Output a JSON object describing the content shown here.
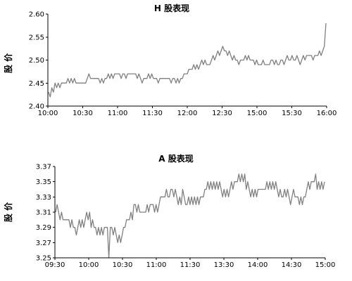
{
  "chart_data": [
    {
      "type": "line",
      "title": "H 股表现",
      "ylabel": "股 价",
      "xlabel": "",
      "ylim": [
        2.4,
        2.6
      ],
      "y_ticks": [
        "2.60",
        "2.55",
        "2.50",
        "2.45",
        "2.40"
      ],
      "x_ticks": [
        "10:00",
        "10:30",
        "11:00",
        "11:30",
        "12:00",
        "12:30",
        "15:00",
        "15:30",
        "16:00"
      ],
      "series": [
        {
          "values": [
            2.43,
            2.42,
            2.44,
            2.43,
            2.45,
            2.44,
            2.45,
            2.44,
            2.45,
            2.45,
            2.45,
            2.45,
            2.46,
            2.45,
            2.46,
            2.45,
            2.46,
            2.45,
            2.45,
            2.45,
            2.45,
            2.45,
            2.45,
            2.45,
            2.46,
            2.47,
            2.46,
            2.46,
            2.46,
            2.46,
            2.46,
            2.46,
            2.45,
            2.46,
            2.45,
            2.46,
            2.46,
            2.47,
            2.46,
            2.47,
            2.46,
            2.47,
            2.47,
            2.47,
            2.47,
            2.46,
            2.47,
            2.47,
            2.46,
            2.47,
            2.47,
            2.47,
            2.47,
            2.47,
            2.47,
            2.46,
            2.47,
            2.46,
            2.45,
            2.46,
            2.46,
            2.46,
            2.47,
            2.46,
            2.47,
            2.46,
            2.46,
            2.46,
            2.45,
            2.46,
            2.46,
            2.46,
            2.46,
            2.46,
            2.46,
            2.46,
            2.45,
            2.46,
            2.46,
            2.45,
            2.46,
            2.45,
            2.46,
            2.46,
            2.47,
            2.47,
            2.47,
            2.48,
            2.48,
            2.48,
            2.49,
            2.48,
            2.49,
            2.48,
            2.49,
            2.5,
            2.49,
            2.5,
            2.49,
            2.49,
            2.49,
            2.5,
            2.51,
            2.5,
            2.51,
            2.52,
            2.51,
            2.52,
            2.53,
            2.52,
            2.52,
            2.51,
            2.52,
            2.51,
            2.5,
            2.51,
            2.5,
            2.5,
            2.49,
            2.5,
            2.5,
            2.5,
            2.51,
            2.5,
            2.51,
            2.5,
            2.5,
            2.5,
            2.49,
            2.5,
            2.49,
            2.49,
            2.49,
            2.5,
            2.49,
            2.49,
            2.49,
            2.49,
            2.5,
            2.5,
            2.49,
            2.5,
            2.49,
            2.49,
            2.5,
            2.5,
            2.49,
            2.5,
            2.51,
            2.5,
            2.5,
            2.51,
            2.5,
            2.5,
            2.51,
            2.5,
            2.49,
            2.5,
            2.51,
            2.5,
            2.51,
            2.51,
            2.51,
            2.51,
            2.5,
            2.51,
            2.51,
            2.51,
            2.52,
            2.51,
            2.52,
            2.53,
            2.58
          ]
        }
      ]
    },
    {
      "type": "line",
      "title": "A 股表现",
      "ylabel": "股 价",
      "xlabel": "",
      "ylim": [
        3.25,
        3.37
      ],
      "y_ticks": [
        "3.37",
        "3.35",
        "3.33",
        "3.31",
        "3.29",
        "3.27",
        "3.25"
      ],
      "x_ticks": [
        "09:30",
        "10:00",
        "10:30",
        "11:00",
        "11:30",
        "13:30",
        "14:00",
        "14:30",
        "15:00"
      ],
      "series": [
        {
          "values": [
            3.31,
            3.32,
            3.31,
            3.3,
            3.31,
            3.3,
            3.3,
            3.3,
            3.3,
            3.3,
            3.29,
            3.3,
            3.29,
            3.29,
            3.28,
            3.29,
            3.3,
            3.29,
            3.3,
            3.29,
            3.3,
            3.31,
            3.3,
            3.31,
            3.29,
            3.3,
            3.29,
            3.29,
            3.28,
            3.29,
            3.28,
            3.29,
            3.28,
            3.29,
            3.29,
            3.29,
            3.25,
            3.29,
            3.29,
            3.28,
            3.29,
            3.28,
            3.27,
            3.28,
            3.27,
            3.28,
            3.29,
            3.29,
            3.3,
            3.3,
            3.3,
            3.31,
            3.3,
            3.32,
            3.32,
            3.31,
            3.32,
            3.31,
            3.31,
            3.31,
            3.31,
            3.31,
            3.32,
            3.31,
            3.32,
            3.32,
            3.32,
            3.31,
            3.32,
            3.31,
            3.32,
            3.33,
            3.33,
            3.33,
            3.33,
            3.34,
            3.33,
            3.33,
            3.34,
            3.34,
            3.33,
            3.34,
            3.33,
            3.32,
            3.33,
            3.32,
            3.34,
            3.33,
            3.32,
            3.32,
            3.33,
            3.32,
            3.33,
            3.32,
            3.33,
            3.32,
            3.33,
            3.32,
            3.33,
            3.33,
            3.33,
            3.34,
            3.34,
            3.35,
            3.34,
            3.35,
            3.34,
            3.35,
            3.34,
            3.35,
            3.34,
            3.35,
            3.34,
            3.33,
            3.34,
            3.33,
            3.34,
            3.33,
            3.34,
            3.35,
            3.34,
            3.35,
            3.35,
            3.35,
            3.36,
            3.35,
            3.36,
            3.35,
            3.36,
            3.34,
            3.35,
            3.34,
            3.33,
            3.34,
            3.33,
            3.34,
            3.33,
            3.34,
            3.34,
            3.34,
            3.34,
            3.34,
            3.34,
            3.35,
            3.34,
            3.35,
            3.34,
            3.35,
            3.34,
            3.35,
            3.34,
            3.33,
            3.34,
            3.33,
            3.33,
            3.34,
            3.33,
            3.34,
            3.33,
            3.32,
            3.33,
            3.34,
            3.33,
            3.33,
            3.33,
            3.32,
            3.33,
            3.32,
            3.33,
            3.33,
            3.34,
            3.35,
            3.34,
            3.35,
            3.35,
            3.35,
            3.36,
            3.34,
            3.35,
            3.34,
            3.35,
            3.34,
            3.35
          ]
        }
      ]
    }
  ]
}
